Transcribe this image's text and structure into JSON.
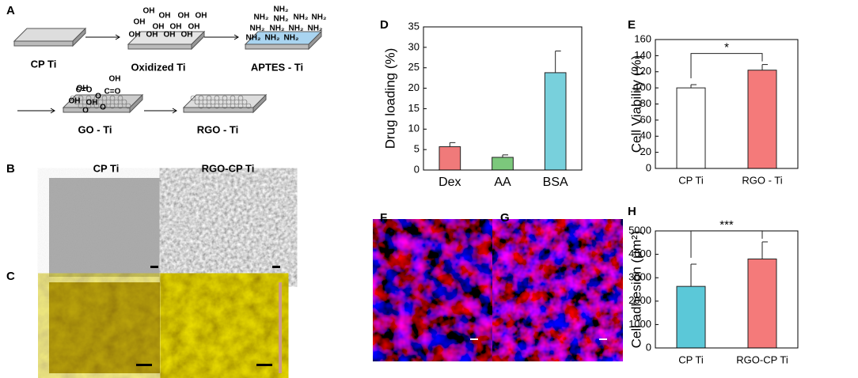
{
  "figure": {
    "panels": [
      "A",
      "B",
      "C",
      "D",
      "E",
      "F",
      "G",
      "H"
    ],
    "diagram": {
      "steps": [
        "CP Ti",
        "Oxidized Ti",
        "APTES - Ti",
        "GO - Ti",
        "RGO - Ti"
      ],
      "groups": {
        "oh": "OH",
        "nh2": "NH₂",
        "co": "C=O",
        "o": "O"
      }
    },
    "micrographs": {
      "columns": [
        "CP Ti",
        "RGO-CP Ti"
      ]
    }
  },
  "chart_data": [
    {
      "type": "bar",
      "ylabel": "Drug loading (%)",
      "categories": [
        "Dex",
        "AA",
        "BSA"
      ],
      "values": [
        5.7,
        3.1,
        23.8
      ],
      "errors": [
        1.0,
        0.6,
        5.3
      ],
      "colors": [
        "#f07a7a",
        "#7cc87c",
        "#78d0dc"
      ],
      "ylim": [
        0,
        35
      ],
      "yticks": [
        0,
        5,
        10,
        15,
        20,
        25,
        30,
        35
      ]
    },
    {
      "type": "bar",
      "ylabel": "Cell Viability (%)",
      "categories": [
        "CP Ti",
        "RGO - Ti"
      ],
      "values": [
        100,
        122
      ],
      "errors": [
        4,
        7
      ],
      "colors": [
        "#ffffff",
        "#f47a7a"
      ],
      "ylim": [
        0,
        160
      ],
      "yticks": [
        0,
        20,
        40,
        60,
        80,
        100,
        120,
        140,
        160
      ],
      "annotation": "*"
    },
    {
      "type": "bar",
      "ylabel": "Cell adhesion (μm²)",
      "categories": [
        "CP Ti",
        "RGO-CP Ti"
      ],
      "values": [
        2630,
        3800
      ],
      "errors": [
        950,
        730
      ],
      "colors": [
        "#5bc8d8",
        "#f47a7a"
      ],
      "ylim": [
        0,
        5000
      ],
      "yticks": [
        0,
        1000,
        2000,
        3000,
        4000,
        5000
      ],
      "annotation": "***"
    }
  ]
}
